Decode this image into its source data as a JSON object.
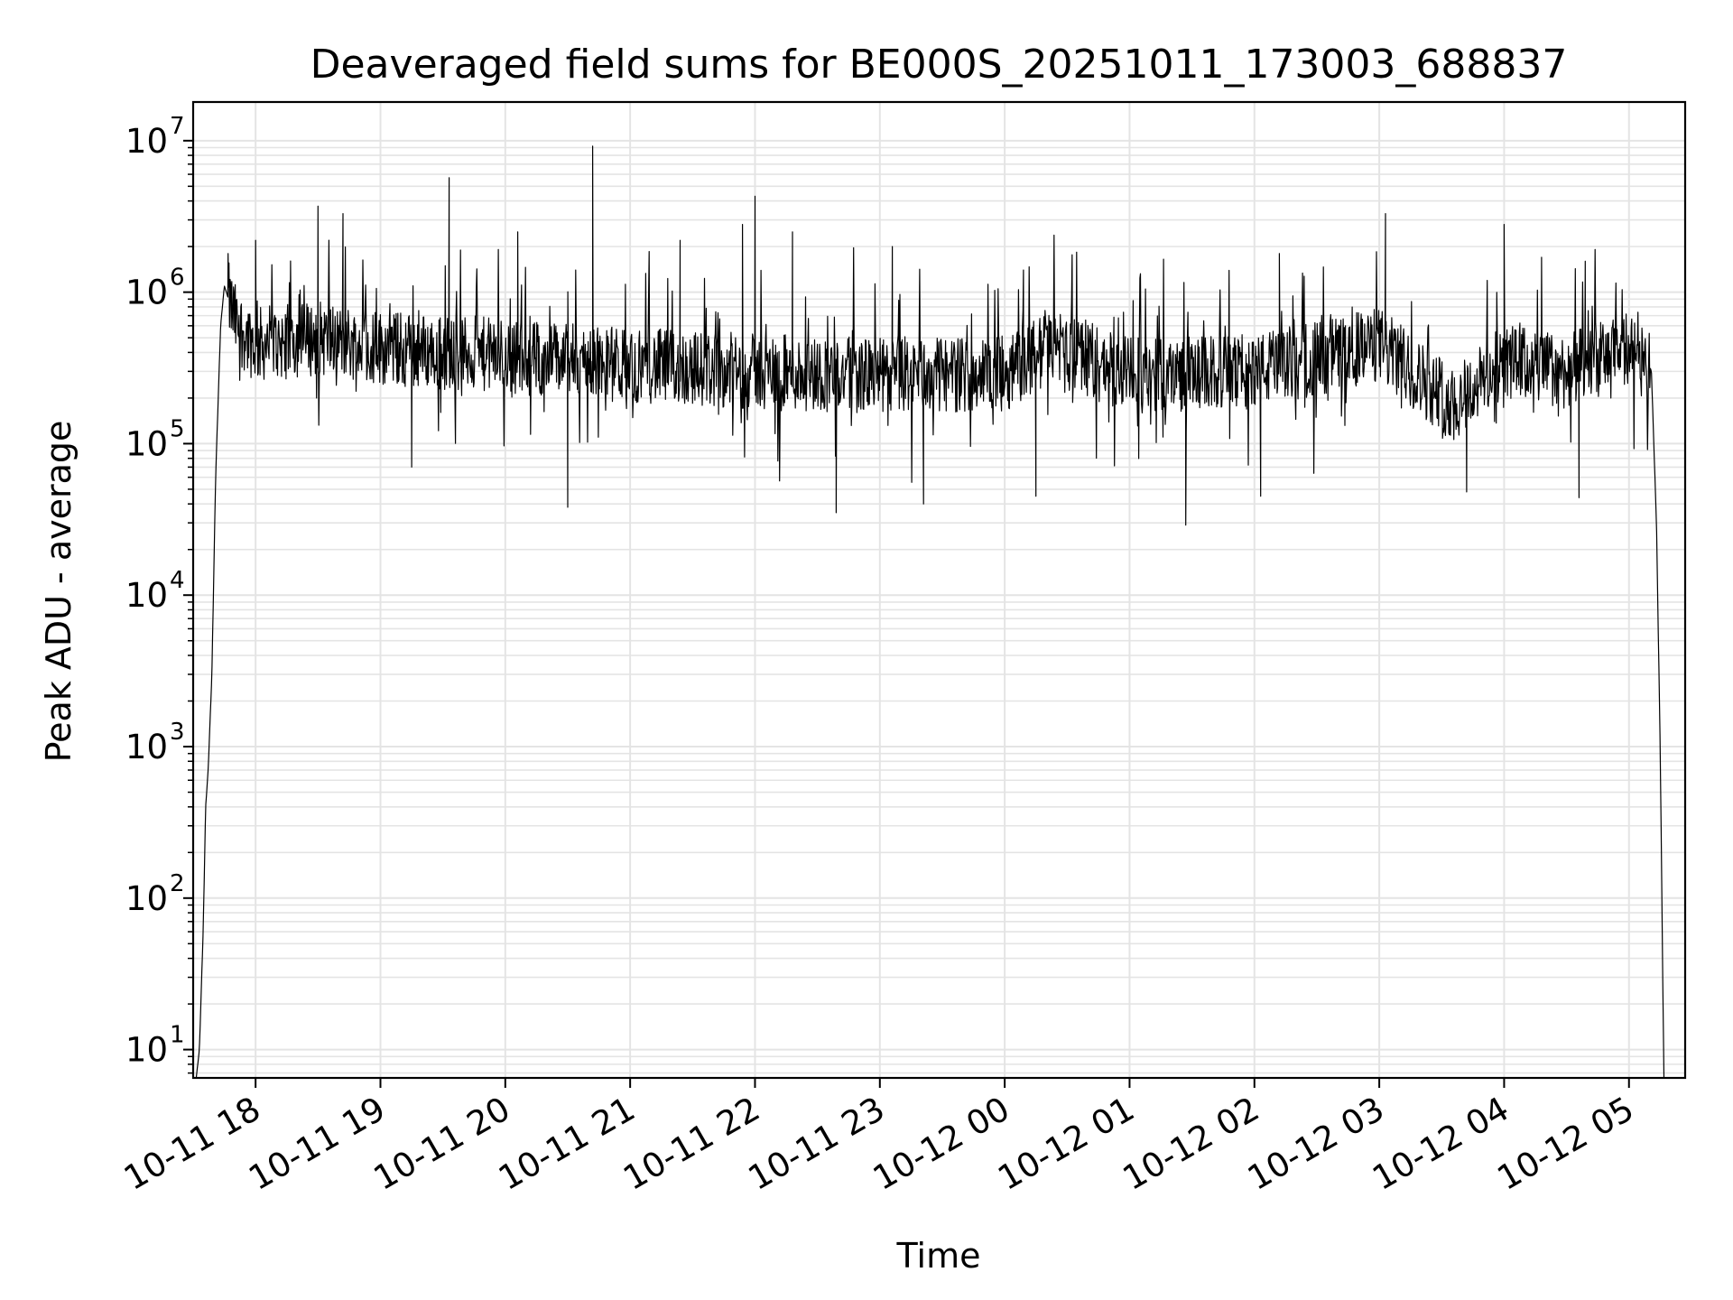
{
  "chart_data": {
    "type": "line",
    "title": "Deaveraged field sums for BE000S_20251011_173003_688837",
    "xlabel": "Time",
    "ylabel": "Peak ADU - average",
    "yscale": "log",
    "ylim": [
      6.5,
      18000000
    ],
    "xlim_hours": [
      -0.5,
      11.45
    ],
    "x_ticks": [
      "10-11 18",
      "10-11 19",
      "10-11 20",
      "10-11 21",
      "10-11 22",
      "10-11 23",
      "10-12 00",
      "10-12 01",
      "10-12 02",
      "10-12 03",
      "10-12 04",
      "10-12 05"
    ],
    "x_tick_hours": [
      0,
      1,
      2,
      3,
      4,
      5,
      6,
      7,
      8,
      9,
      10,
      11
    ],
    "y_ticks": [
      {
        "base": "10",
        "exp": "1",
        "value": 10
      },
      {
        "base": "10",
        "exp": "2",
        "value": 100
      },
      {
        "base": "10",
        "exp": "3",
        "value": 1000
      },
      {
        "base": "10",
        "exp": "4",
        "value": 10000
      },
      {
        "base": "10",
        "exp": "5",
        "value": 100000
      },
      {
        "base": "10",
        "exp": "6",
        "value": 1000000
      },
      {
        "base": "10",
        "exp": "7",
        "value": 10000000
      }
    ],
    "grid": true,
    "series": [
      {
        "name": "deaveraged field sums",
        "color": "#000000",
        "noise_sample_count": 2600,
        "baseline": [
          {
            "h": -0.48,
            "v": 6
          },
          {
            "h": -0.45,
            "v": 10
          },
          {
            "h": -0.42,
            "v": 60
          },
          {
            "h": -0.4,
            "v": 400
          },
          {
            "h": -0.38,
            "v": 700
          },
          {
            "h": -0.35,
            "v": 3000
          },
          {
            "h": -0.32,
            "v": 60000
          },
          {
            "h": -0.28,
            "v": 600000
          },
          {
            "h": -0.25,
            "v": 1100000
          },
          {
            "h": -0.15,
            "v": 600000
          },
          {
            "h": 0.0,
            "v": 450000
          },
          {
            "h": 0.5,
            "v": 500000
          },
          {
            "h": 1.0,
            "v": 430000
          },
          {
            "h": 2.0,
            "v": 380000
          },
          {
            "h": 3.0,
            "v": 330000
          },
          {
            "h": 4.0,
            "v": 300000
          },
          {
            "h": 5.0,
            "v": 280000
          },
          {
            "h": 6.0,
            "v": 290000
          },
          {
            "h": 6.4,
            "v": 450000
          },
          {
            "h": 7.0,
            "v": 280000
          },
          {
            "h": 8.0,
            "v": 300000
          },
          {
            "h": 9.0,
            "v": 450000
          },
          {
            "h": 9.6,
            "v": 180000
          },
          {
            "h": 10.0,
            "v": 350000
          },
          {
            "h": 10.5,
            "v": 300000
          },
          {
            "h": 11.1,
            "v": 450000
          },
          {
            "h": 11.18,
            "v": 300000
          },
          {
            "h": 11.22,
            "v": 30000
          },
          {
            "h": 11.25,
            "v": 1000
          },
          {
            "h": 11.28,
            "v": 6
          }
        ],
        "peaks": [
          {
            "h": -0.22,
            "v": 1800000
          },
          {
            "h": 0.0,
            "v": 2200000
          },
          {
            "h": 0.5,
            "v": 3700000
          },
          {
            "h": 0.7,
            "v": 3300000
          },
          {
            "h": 1.55,
            "v": 5700000
          },
          {
            "h": 2.1,
            "v": 2500000
          },
          {
            "h": 2.7,
            "v": 9200000
          },
          {
            "h": 3.4,
            "v": 2200000
          },
          {
            "h": 3.9,
            "v": 2800000
          },
          {
            "h": 4.0,
            "v": 4300000
          },
          {
            "h": 4.3,
            "v": 2500000
          },
          {
            "h": 5.1,
            "v": 2000000
          },
          {
            "h": 6.15,
            "v": 1400000
          },
          {
            "h": 8.2,
            "v": 1800000
          },
          {
            "h": 9.05,
            "v": 3300000
          },
          {
            "h": 10.0,
            "v": 2800000
          },
          {
            "h": 10.3,
            "v": 1700000
          },
          {
            "h": 10.65,
            "v": 1600000
          }
        ],
        "dips": [
          {
            "h": 1.25,
            "v": 70000
          },
          {
            "h": 2.5,
            "v": 38000
          },
          {
            "h": 4.65,
            "v": 35000
          },
          {
            "h": 5.35,
            "v": 40000
          },
          {
            "h": 6.25,
            "v": 45000
          },
          {
            "h": 7.45,
            "v": 29000
          },
          {
            "h": 8.05,
            "v": 45000
          },
          {
            "h": 9.7,
            "v": 48000
          },
          {
            "h": 10.6,
            "v": 44000
          }
        ]
      }
    ]
  }
}
